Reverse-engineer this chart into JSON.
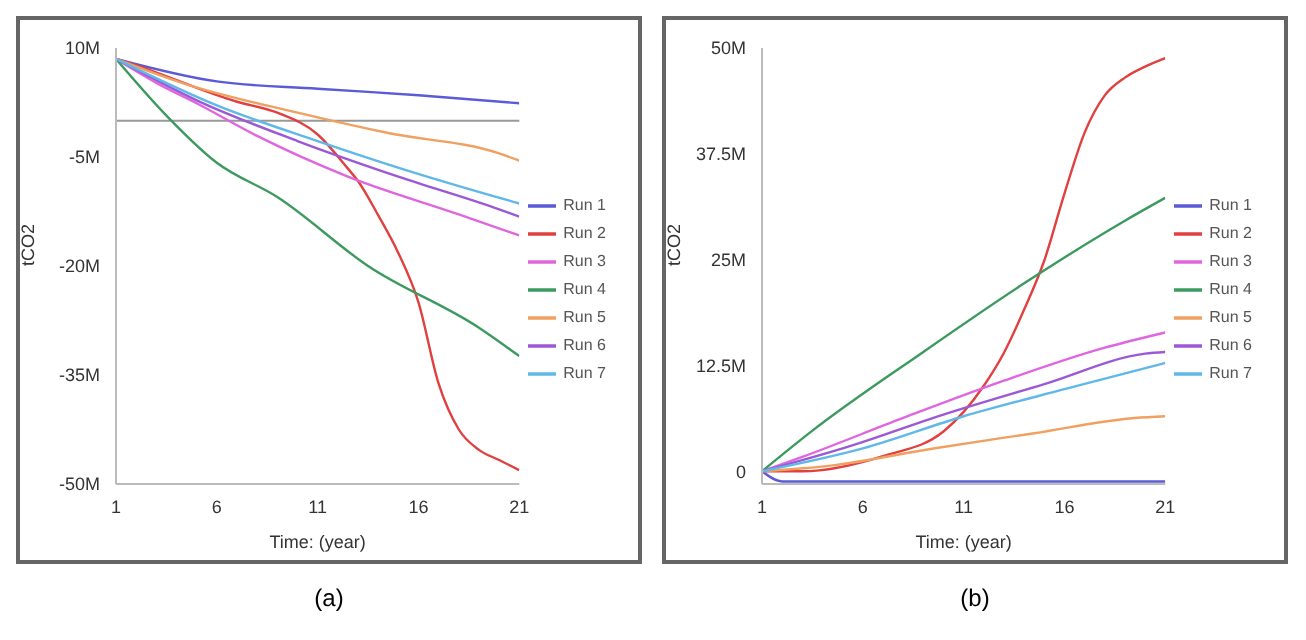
{
  "chart_data": [
    {
      "type": "line",
      "xlabel": "Time: (year)",
      "ylabel": "tCO2",
      "annotations": [
        "(a)"
      ],
      "xlim": [
        1,
        21
      ],
      "xticks": [
        1,
        6,
        11,
        16,
        21
      ],
      "ylim": [
        -50000000,
        10000000
      ],
      "yticks": [
        {
          "value": 10000000,
          "label": "10M"
        },
        {
          "value": -5000000,
          "label": "-5M"
        },
        {
          "value": -20000000,
          "label": "-20M"
        },
        {
          "value": -35000000,
          "label": "-35M"
        },
        {
          "value": -50000000,
          "label": "-50M"
        }
      ],
      "grid": false,
      "legend": "right",
      "ref_lines": [
        {
          "axis": "y",
          "value": 0,
          "color": "#999999"
        }
      ],
      "series": [
        {
          "name": "Run 1",
          "color": "#5b5bd6",
          "x": [
            1,
            6,
            11,
            16,
            21
          ],
          "values": [
            8500000,
            5400000,
            4400000,
            3500000,
            2400000
          ]
        },
        {
          "name": "Run 2",
          "color": "#e0403f",
          "x": [
            1,
            2,
            7,
            9,
            11,
            12.5,
            13,
            14,
            15,
            16,
            17,
            18,
            19,
            20,
            21
          ],
          "values": [
            8500000,
            7600000,
            2600000,
            1100000,
            -1900000,
            -6600000,
            -8300000,
            -13000000,
            -18200000,
            -25000000,
            -36200000,
            -42500000,
            -45300000,
            -46700000,
            -48100000
          ]
        },
        {
          "name": "Run 3",
          "color": "#e066e0",
          "x": [
            1,
            3,
            5,
            8,
            12.5,
            18,
            21
          ],
          "values": [
            8500000,
            5200000,
            2400000,
            -2100000,
            -7700000,
            -12900000,
            -15800000
          ]
        },
        {
          "name": "Run 4",
          "color": "#3c9a5f",
          "x": [
            1,
            3.5,
            6,
            9,
            13.5,
            19,
            21
          ],
          "values": [
            8500000,
            700000,
            -5800000,
            -10500000,
            -20000000,
            -28500000,
            -32400000
          ]
        },
        {
          "name": "Run 5",
          "color": "#f0a060",
          "x": [
            1,
            4.5,
            10,
            14.5,
            20,
            21
          ],
          "values": [
            8500000,
            5000000,
            1100000,
            -1700000,
            -4500000,
            -5500000
          ]
        },
        {
          "name": "Run 6",
          "color": "#9b59d6",
          "x": [
            1,
            5,
            10,
            15,
            20,
            21
          ],
          "values": [
            8500000,
            2800000,
            -2800000,
            -7700000,
            -12200000,
            -13200000
          ]
        },
        {
          "name": "Run 7",
          "color": "#5fb8e8",
          "x": [
            1,
            6,
            11,
            15.5,
            21
          ],
          "values": [
            8500000,
            2100000,
            -2800000,
            -6900000,
            -11400000
          ]
        }
      ]
    },
    {
      "type": "line",
      "xlabel": "Time: (year)",
      "ylabel": "tCO2",
      "annotations": [
        "(b)"
      ],
      "xlim": [
        1,
        21
      ],
      "xticks": [
        1,
        6,
        11,
        16,
        21
      ],
      "ylim": [
        -1500000,
        50000000
      ],
      "yticks": [
        0,
        {
          "value": 12500000,
          "label": "12.5M"
        },
        {
          "value": 25000000,
          "label": "25M"
        },
        {
          "value": 37500000,
          "label": "37.5M"
        },
        {
          "value": 50000000,
          "label": "50M"
        }
      ],
      "grid": false,
      "legend": "right",
      "series": [
        {
          "name": "Run 1",
          "color": "#5b5bd6",
          "x": [
            1,
            2,
            21
          ],
          "values": [
            0,
            -1200000,
            -1200000
          ]
        },
        {
          "name": "Run 2",
          "color": "#e0403f",
          "x": [
            1,
            3,
            7,
            10,
            12,
            13,
            14,
            15,
            16,
            17,
            18,
            19,
            20,
            21
          ],
          "values": [
            0,
            0,
            1800000,
            4700000,
            10100000,
            14000000,
            19100000,
            24900000,
            32800000,
            40000000,
            44400000,
            46500000,
            47800000,
            48800000
          ]
        },
        {
          "name": "Run 3",
          "color": "#e066e0",
          "x": [
            1,
            3,
            8,
            13,
            18,
            21
          ],
          "values": [
            0,
            1700000,
            6300000,
            10700000,
            14600000,
            16400000
          ]
        },
        {
          "name": "Run 4",
          "color": "#3c9a5f",
          "x": [
            1,
            3.5,
            9,
            14,
            19,
            21
          ],
          "values": [
            0,
            4800000,
            14100000,
            22200000,
            29600000,
            32300000
          ]
        },
        {
          "name": "Run 5",
          "color": "#f0a060",
          "x": [
            1,
            4.5,
            9.5,
            14.5,
            19.5,
            21
          ],
          "values": [
            0,
            700000,
            2700000,
            4500000,
            6300000,
            6500000
          ]
        },
        {
          "name": "Run 6",
          "color": "#9b59d6",
          "x": [
            1,
            5,
            10,
            15,
            20,
            21
          ],
          "values": [
            0,
            2700000,
            6700000,
            10300000,
            13900000,
            14100000
          ]
        },
        {
          "name": "Run 7",
          "color": "#5fb8e8",
          "x": [
            1,
            6,
            11,
            16,
            21
          ],
          "values": [
            0,
            2700000,
            6500000,
            9700000,
            12800000
          ]
        }
      ]
    }
  ]
}
